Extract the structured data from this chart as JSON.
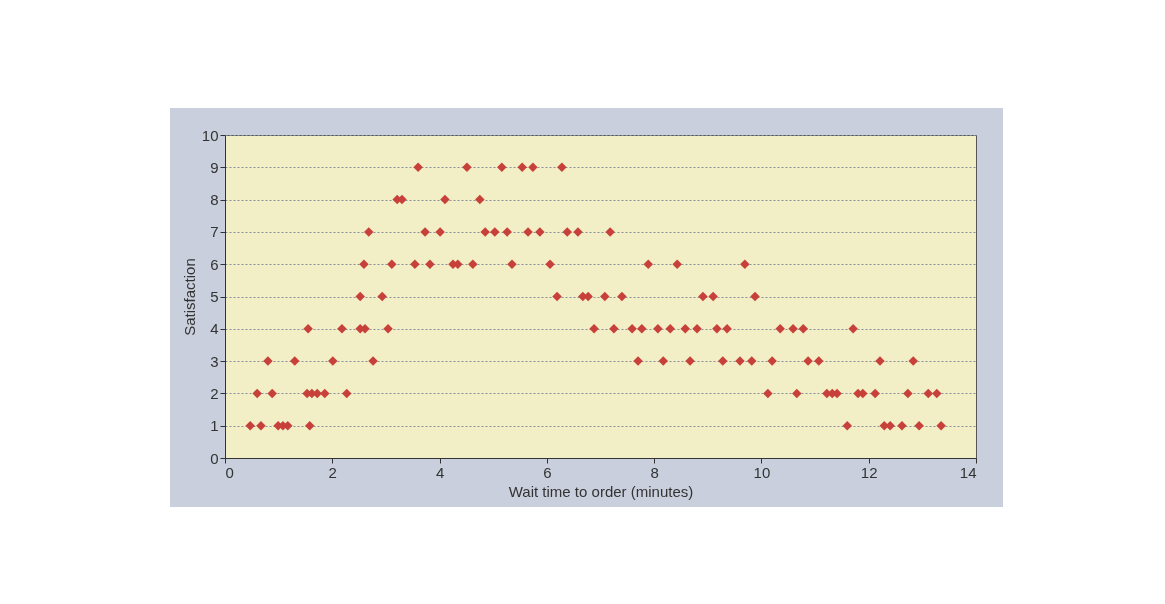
{
  "chart_data": {
    "type": "scatter",
    "xlabel": "Wait time to order (minutes)",
    "ylabel": "Satisfaction",
    "xlim": [
      0,
      14
    ],
    "xticks": [
      0,
      2,
      4,
      6,
      8,
      10,
      12,
      14
    ],
    "ylim": [
      0,
      10
    ],
    "yticks": [
      0,
      1,
      2,
      3,
      4,
      5,
      6,
      7,
      8,
      9,
      10
    ],
    "grid": "y",
    "marker": "diamond",
    "series": [
      {
        "color": "#c8403a",
        "x": [
          0.47,
          0.67,
          0.99,
          1.08,
          1.17,
          1.58,
          11.6,
          12.29,
          12.4,
          12.62,
          12.94,
          13.35,
          0.6,
          0.88,
          1.53,
          1.62,
          1.72,
          1.86,
          2.27,
          10.12,
          10.66,
          11.22,
          11.32,
          11.41,
          11.8,
          11.89,
          12.12,
          12.73,
          13.11,
          13.27,
          0.8,
          1.3,
          2.01,
          2.76,
          7.7,
          8.17,
          8.67,
          9.28,
          9.6,
          9.82,
          10.2,
          10.87,
          11.07,
          12.21,
          12.83,
          1.55,
          2.18,
          2.52,
          2.61,
          3.04,
          6.88,
          7.25,
          7.59,
          7.77,
          8.07,
          8.3,
          8.58,
          8.8,
          9.17,
          9.36,
          10.35,
          10.59,
          10.78,
          11.71,
          2.52,
          2.93,
          6.19,
          6.67,
          6.77,
          7.08,
          7.4,
          8.91,
          9.1,
          9.88,
          2.59,
          3.11,
          3.54,
          3.82,
          4.25,
          4.34,
          4.62,
          5.35,
          6.06,
          7.89,
          8.43,
          9.69,
          2.68,
          3.73,
          4.01,
          4.85,
          5.03,
          5.26,
          5.65,
          5.87,
          6.38,
          6.58,
          7.18,
          3.21,
          3.3,
          4.1,
          4.75,
          3.6,
          4.51,
          5.16,
          5.54,
          5.74,
          6.28
        ],
        "values": [
          1,
          1,
          1,
          1,
          1,
          1,
          1,
          1,
          1,
          1,
          1,
          1,
          2,
          2,
          2,
          2,
          2,
          2,
          2,
          2,
          2,
          2,
          2,
          2,
          2,
          2,
          2,
          2,
          2,
          2,
          3,
          3,
          3,
          3,
          3,
          3,
          3,
          3,
          3,
          3,
          3,
          3,
          3,
          3,
          3,
          4,
          4,
          4,
          4,
          4,
          4,
          4,
          4,
          4,
          4,
          4,
          4,
          4,
          4,
          4,
          4,
          4,
          4,
          4,
          5,
          5,
          5,
          5,
          5,
          5,
          5,
          5,
          5,
          5,
          6,
          6,
          6,
          6,
          6,
          6,
          6,
          6,
          6,
          6,
          6,
          6,
          7,
          7,
          7,
          7,
          7,
          7,
          7,
          7,
          7,
          7,
          7,
          8,
          8,
          8,
          8,
          9,
          9,
          9,
          9,
          9,
          9
        ]
      }
    ]
  }
}
